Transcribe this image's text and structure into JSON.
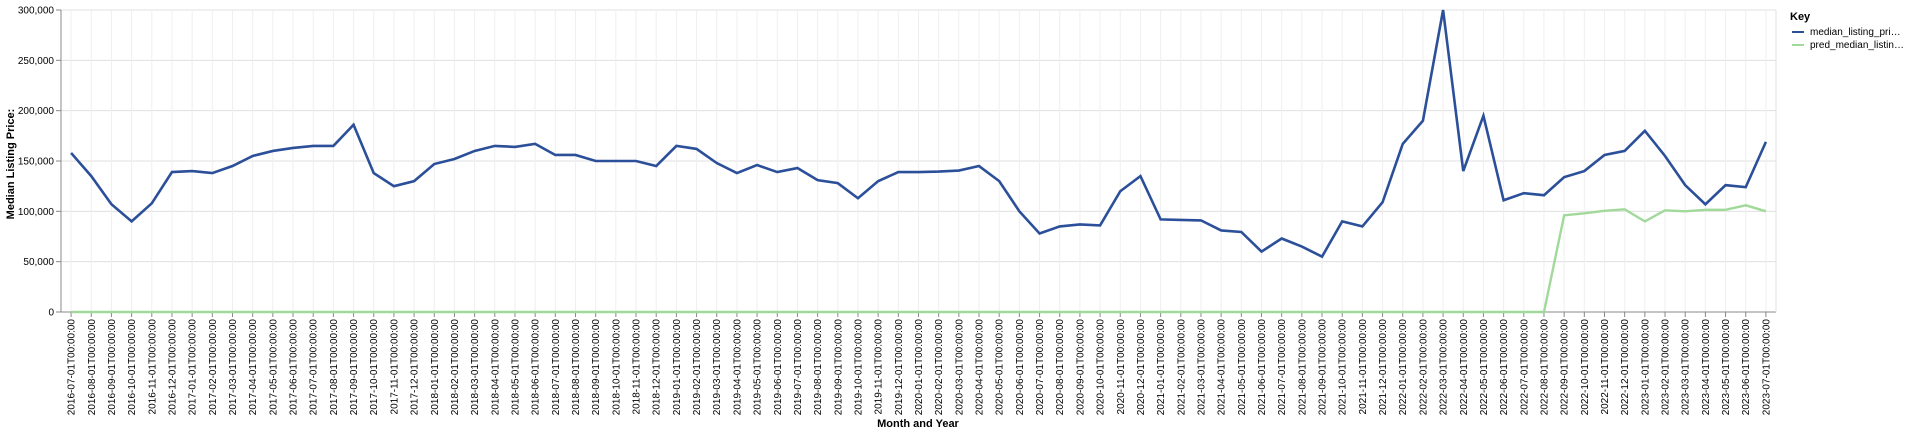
{
  "chart_data": {
    "type": "line",
    "xlabel": "Month and Year",
    "ylabel": "Median Listing Price:",
    "ylim": [
      0,
      300000
    ],
    "yticks": [
      "0",
      "50,000",
      "100,000",
      "150,000",
      "200,000",
      "250,000",
      "300,000"
    ],
    "ytick_values": [
      0,
      50000,
      100000,
      150000,
      200000,
      250000,
      300000
    ],
    "grid": true,
    "legend": {
      "title": "Key",
      "placement": "top-right",
      "entries": [
        "median_listing_pri…",
        "pred_median_listin…"
      ]
    },
    "categories": [
      "2016-07-01T00:00:00",
      "2016-08-01T00:00:00",
      "2016-09-01T00:00:00",
      "2016-10-01T00:00:00",
      "2016-11-01T00:00:00",
      "2016-12-01T00:00:00",
      "2017-01-01T00:00:00",
      "2017-02-01T00:00:00",
      "2017-03-01T00:00:00",
      "2017-04-01T00:00:00",
      "2017-05-01T00:00:00",
      "2017-06-01T00:00:00",
      "2017-07-01T00:00:00",
      "2017-08-01T00:00:00",
      "2017-09-01T00:00:00",
      "2017-10-01T00:00:00",
      "2017-11-01T00:00:00",
      "2017-12-01T00:00:00",
      "2018-01-01T00:00:00",
      "2018-02-01T00:00:00",
      "2018-03-01T00:00:00",
      "2018-04-01T00:00:00",
      "2018-05-01T00:00:00",
      "2018-06-01T00:00:00",
      "2018-07-01T00:00:00",
      "2018-08-01T00:00:00",
      "2018-09-01T00:00:00",
      "2018-10-01T00:00:00",
      "2018-11-01T00:00:00",
      "2018-12-01T00:00:00",
      "2019-01-01T00:00:00",
      "2019-02-01T00:00:00",
      "2019-03-01T00:00:00",
      "2019-04-01T00:00:00",
      "2019-05-01T00:00:00",
      "2019-06-01T00:00:00",
      "2019-07-01T00:00:00",
      "2019-08-01T00:00:00",
      "2019-09-01T00:00:00",
      "2019-10-01T00:00:00",
      "2019-11-01T00:00:00",
      "2019-12-01T00:00:00",
      "2020-01-01T00:00:00",
      "2020-02-01T00:00:00",
      "2020-03-01T00:00:00",
      "2020-04-01T00:00:00",
      "2020-05-01T00:00:00",
      "2020-06-01T00:00:00",
      "2020-07-01T00:00:00",
      "2020-08-01T00:00:00",
      "2020-09-01T00:00:00",
      "2020-10-01T00:00:00",
      "2020-11-01T00:00:00",
      "2020-12-01T00:00:00",
      "2021-01-01T00:00:00",
      "2021-02-01T00:00:00",
      "2021-03-01T00:00:00",
      "2021-04-01T00:00:00",
      "2021-05-01T00:00:00",
      "2021-06-01T00:00:00",
      "2021-07-01T00:00:00",
      "2021-08-01T00:00:00",
      "2021-09-01T00:00:00",
      "2021-10-01T00:00:00",
      "2021-11-01T00:00:00",
      "2021-12-01T00:00:00",
      "2022-01-01T00:00:00",
      "2022-02-01T00:00:00",
      "2022-03-01T00:00:00",
      "2022-04-01T00:00:00",
      "2022-05-01T00:00:00",
      "2022-06-01T00:00:00",
      "2022-07-01T00:00:00",
      "2022-08-01T00:00:00",
      "2022-09-01T00:00:00",
      "2022-10-01T00:00:00",
      "2022-11-01T00:00:00",
      "2022-12-01T00:00:00",
      "2023-01-01T00:00:00",
      "2023-02-01T00:00:00",
      "2023-03-01T00:00:00",
      "2023-04-01T00:00:00",
      "2023-05-01T00:00:00",
      "2023-06-01T00:00:00",
      "2023-07-01T00:00:00"
    ],
    "series": [
      {
        "name": "median_listing_pri…",
        "color": "#2c4f9a",
        "values": [
          158000,
          135000,
          107000,
          90000,
          108000,
          139000,
          140000,
          138000,
          145000,
          155000,
          160000,
          163000,
          165000,
          165000,
          186000,
          138000,
          125000,
          130000,
          147000,
          152000,
          160000,
          165000,
          164000,
          167000,
          156000,
          156000,
          150000,
          150000,
          150000,
          145000,
          165000,
          162000,
          148000,
          138000,
          146000,
          139000,
          143000,
          131000,
          128000,
          113000,
          130000,
          139000,
          139000,
          139500,
          140500,
          145000,
          130000,
          100000,
          78000,
          85000,
          87000,
          86000,
          120000,
          135000,
          92000,
          91500,
          91000,
          81000,
          79500,
          60000,
          73000,
          65000,
          55000,
          90000,
          85000,
          109000,
          167000,
          190000,
          300000,
          140000,
          195000,
          111000,
          118000,
          116000,
          134000,
          140000,
          156000,
          160000,
          180000,
          155000,
          126000,
          107000,
          126000,
          124000,
          169000
        ]
      },
      {
        "name": "pred_median_listin…",
        "color": "#a1d99b",
        "values": [
          0,
          0,
          0,
          0,
          0,
          0,
          0,
          0,
          0,
          0,
          0,
          0,
          0,
          0,
          0,
          0,
          0,
          0,
          0,
          0,
          0,
          0,
          0,
          0,
          0,
          0,
          0,
          0,
          0,
          0,
          0,
          0,
          0,
          0,
          0,
          0,
          0,
          0,
          0,
          0,
          0,
          0,
          0,
          0,
          0,
          0,
          0,
          0,
          0,
          0,
          0,
          0,
          0,
          0,
          0,
          0,
          0,
          0,
          0,
          0,
          0,
          0,
          0,
          0,
          0,
          0,
          0,
          0,
          0,
          0,
          0,
          0,
          0,
          0,
          96000,
          98000,
          100500,
          102000,
          90000,
          101000,
          100000,
          101500,
          101500,
          106000,
          100000
        ]
      }
    ]
  }
}
